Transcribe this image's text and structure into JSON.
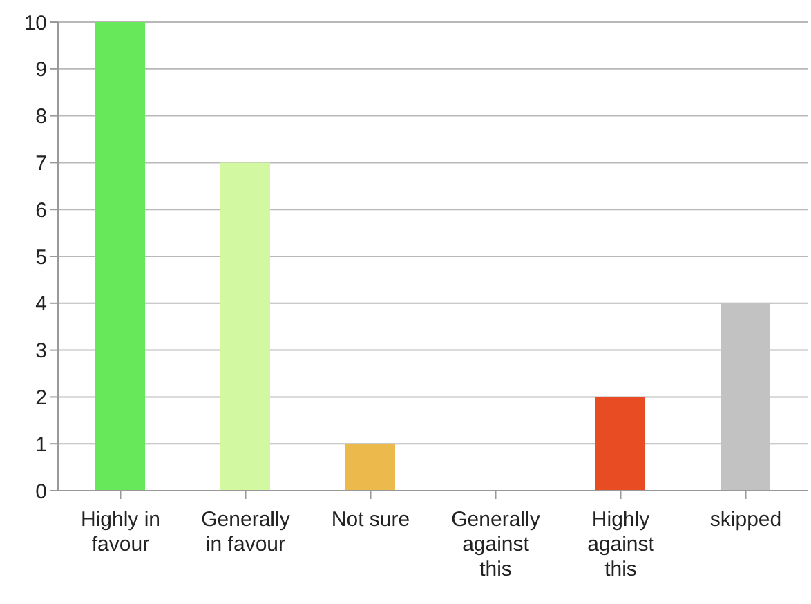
{
  "chart_data": {
    "type": "bar",
    "categories": [
      "Highly in favour",
      "Generally in favour",
      "Not sure",
      "Generally against this",
      "Highly against this",
      "skipped"
    ],
    "values": [
      10,
      7,
      1,
      0,
      2,
      4
    ],
    "colors": [
      "#66e85a",
      "#d2f8a2",
      "#ebb94c",
      "#ffffff",
      "#e84c22",
      "#c2c2c2"
    ],
    "ylim": [
      0,
      10
    ],
    "yticks": [
      0,
      1,
      2,
      3,
      4,
      5,
      6,
      7,
      8,
      9,
      10
    ],
    "grid": "y"
  }
}
